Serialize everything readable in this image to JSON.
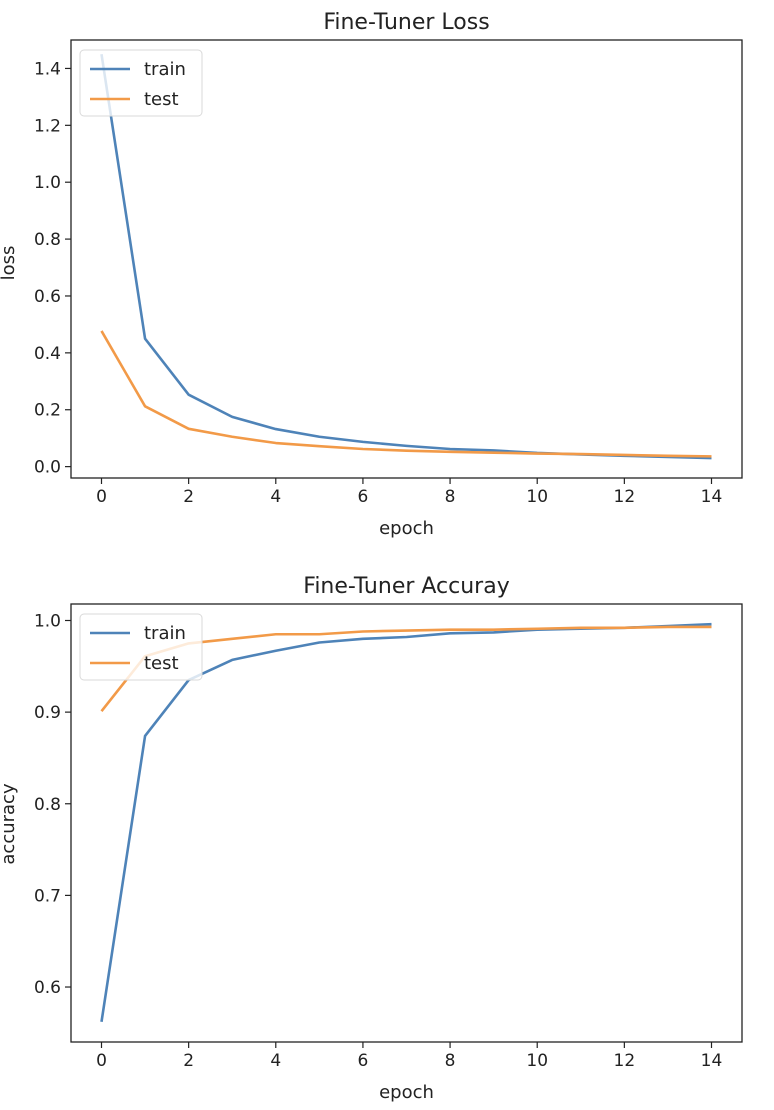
{
  "chart_data": [
    {
      "type": "line",
      "title": "Fine-Tuner Loss",
      "xlabel": "epoch",
      "ylabel": "loss",
      "xlim": [
        -0.7,
        14.7
      ],
      "ylim": [
        -0.04,
        1.5
      ],
      "xticks": [
        0,
        2,
        4,
        6,
        8,
        10,
        12,
        14
      ],
      "xtick_labels": [
        "0",
        "2",
        "4",
        "6",
        "8",
        "10",
        "12",
        "14"
      ],
      "yticks": [
        0.0,
        0.2,
        0.4,
        0.6,
        0.8,
        1.0,
        1.2,
        1.4
      ],
      "ytick_labels": [
        "0.0",
        "0.2",
        "0.4",
        "0.6",
        "0.8",
        "1.0",
        "1.2",
        "1.4"
      ],
      "legend": "top-left",
      "grid": false,
      "x": [
        0,
        1,
        2,
        3,
        4,
        5,
        6,
        7,
        8,
        9,
        10,
        11,
        12,
        13,
        14
      ],
      "series": [
        {
          "name": "train",
          "color": "#4e83b8",
          "values": [
            1.45,
            0.45,
            0.253,
            0.175,
            0.132,
            0.105,
            0.087,
            0.073,
            0.062,
            0.057,
            0.048,
            0.043,
            0.038,
            0.034,
            0.03
          ]
        },
        {
          "name": "test",
          "color": "#f29a48",
          "values": [
            0.477,
            0.212,
            0.133,
            0.105,
            0.083,
            0.072,
            0.062,
            0.056,
            0.052,
            0.049,
            0.046,
            0.044,
            0.041,
            0.038,
            0.036
          ]
        }
      ]
    },
    {
      "type": "line",
      "title": "Fine-Tuner Accuray",
      "xlabel": "epoch",
      "ylabel": "accuracy",
      "xlim": [
        -0.7,
        14.7
      ],
      "ylim": [
        0.54,
        1.018
      ],
      "xticks": [
        0,
        2,
        4,
        6,
        8,
        10,
        12,
        14
      ],
      "xtick_labels": [
        "0",
        "2",
        "4",
        "6",
        "8",
        "10",
        "12",
        "14"
      ],
      "yticks": [
        0.6,
        0.7,
        0.8,
        0.9,
        1.0
      ],
      "ytick_labels": [
        "0.6",
        "0.7",
        "0.8",
        "0.9",
        "1.0"
      ],
      "legend": "top-left",
      "grid": false,
      "x": [
        0,
        1,
        2,
        3,
        4,
        5,
        6,
        7,
        8,
        9,
        10,
        11,
        12,
        13,
        14
      ],
      "series": [
        {
          "name": "train",
          "color": "#4e83b8",
          "values": [
            0.562,
            0.874,
            0.935,
            0.957,
            0.967,
            0.976,
            0.98,
            0.982,
            0.986,
            0.987,
            0.99,
            0.991,
            0.992,
            0.994,
            0.996
          ]
        },
        {
          "name": "test",
          "color": "#f29a48",
          "values": [
            0.901,
            0.961,
            0.975,
            0.98,
            0.985,
            0.985,
            0.988,
            0.989,
            0.99,
            0.99,
            0.991,
            0.992,
            0.992,
            0.993,
            0.993
          ]
        }
      ]
    }
  ]
}
